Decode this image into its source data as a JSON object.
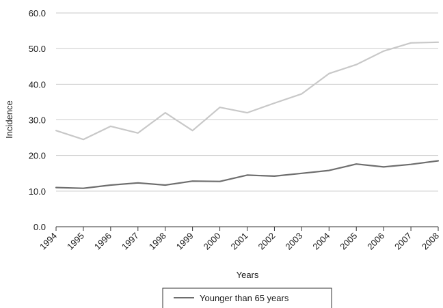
{
  "chart_data": {
    "type": "line",
    "title": "",
    "xlabel": "Years",
    "ylabel": "Incidence",
    "categories": [
      "1994",
      "1995",
      "1996",
      "1997",
      "1998",
      "1999",
      "2000",
      "2001",
      "2002",
      "2003",
      "2004",
      "2005",
      "2006",
      "2007",
      "2008"
    ],
    "y_ticks": [
      "0.0",
      "10.0",
      "20.0",
      "30.0",
      "40.0",
      "50.0",
      "60.0"
    ],
    "ylim": [
      0,
      60
    ],
    "grid": true,
    "legend_position": "bottom",
    "series": [
      {
        "name": "",
        "color": "#c8c8c8",
        "values": [
          27.0,
          24.5,
          28.2,
          26.3,
          32.0,
          27.0,
          33.5,
          32.0,
          34.7,
          37.3,
          43.0,
          45.5,
          49.3,
          51.6,
          51.8
        ]
      },
      {
        "name": "Younger than 65 years",
        "color": "#6e6e6e",
        "values": [
          11.0,
          10.8,
          11.7,
          12.3,
          11.7,
          12.8,
          12.7,
          14.5,
          14.2,
          15.0,
          15.8,
          17.6,
          16.8,
          17.5,
          18.5
        ]
      }
    ]
  }
}
